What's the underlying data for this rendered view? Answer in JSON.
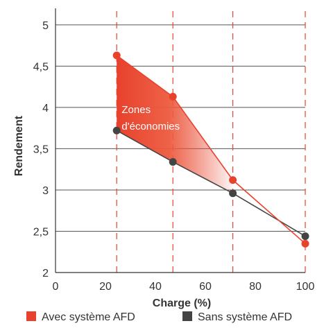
{
  "chart_data": {
    "type": "line",
    "xlabel": "Charge (%)",
    "ylabel": "Rendement",
    "xlim": [
      0,
      100
    ],
    "ylim": [
      2,
      5.2
    ],
    "xticks": [
      "0",
      "20",
      "40",
      "60",
      "80",
      "100"
    ],
    "yticks": [
      "2",
      "2,5",
      "3",
      "3,5",
      "4",
      "4,5",
      "5"
    ],
    "grid": "horizontal",
    "x_reference_lines": [
      24.5,
      47,
      71,
      100
    ],
    "annotation": {
      "lines": [
        "Zones",
        "d'économies"
      ],
      "x": 26.5,
      "y": 3.93
    },
    "legend_position": "bottom",
    "series": [
      {
        "name": "Avec système AFD",
        "color": "#e8412c",
        "points": [
          [
            24.5,
            4.63
          ],
          [
            47,
            4.13
          ],
          [
            71,
            3.12
          ],
          [
            100,
            2.35
          ]
        ]
      },
      {
        "name": "Sans système AFD",
        "color": "#444444",
        "points": [
          [
            24.5,
            3.72
          ],
          [
            47,
            3.34
          ],
          [
            71,
            2.96
          ],
          [
            100,
            2.44
          ]
        ]
      }
    ],
    "shaded_region": {
      "label": "Zones d'économies",
      "between": [
        "Avec système AFD",
        "Sans système AFD"
      ]
    }
  }
}
